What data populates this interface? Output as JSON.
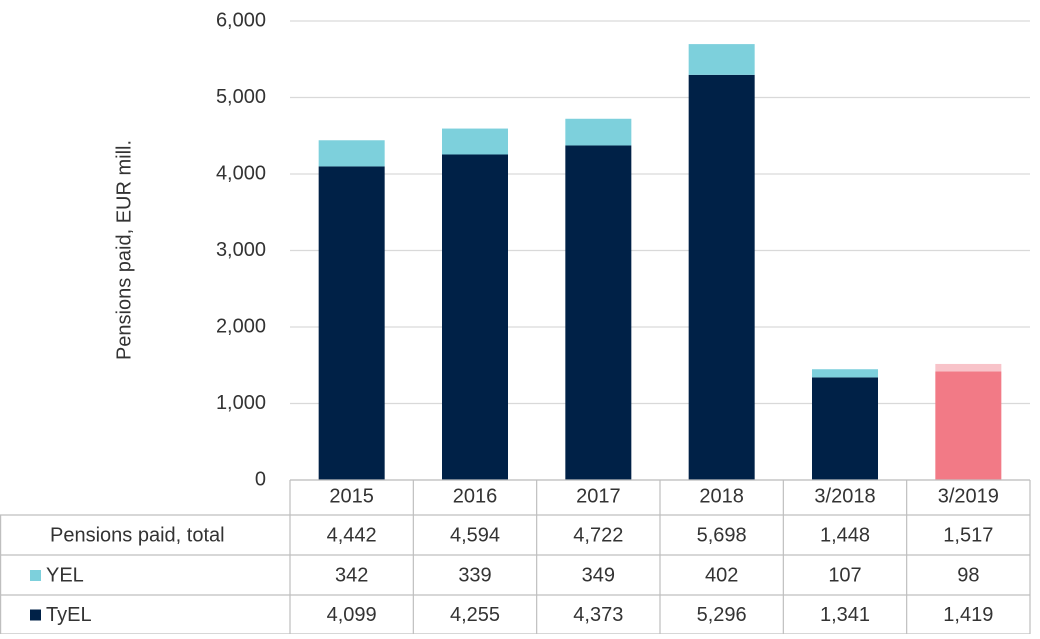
{
  "chart_data": {
    "type": "stacked_bar",
    "y_label": "Pensions paid, EUR mill.",
    "categories": [
      "2015",
      "2016",
      "2017",
      "2018",
      "3/2018",
      "3/2019"
    ],
    "series": [
      {
        "name": "TyEL",
        "color": "#002147",
        "colors": [
          "#002147",
          "#002147",
          "#002147",
          "#002147",
          "#002147",
          "#f27a86"
        ],
        "values": [
          4099,
          4255,
          4373,
          5296,
          1341,
          1419
        ],
        "value_labels": [
          "4,099",
          "4,255",
          "4,373",
          "5,296",
          "1,341",
          "1,419"
        ]
      },
      {
        "name": "YEL",
        "color": "#7dd0dc",
        "colors": [
          "#7dd0dc",
          "#7dd0dc",
          "#7dd0dc",
          "#7dd0dc",
          "#7dd0dc",
          "#f8c3c9"
        ],
        "values": [
          342,
          339,
          349,
          402,
          107,
          98
        ],
        "value_labels": [
          "342",
          "339",
          "349",
          "402",
          "107",
          "98"
        ]
      }
    ],
    "totals": {
      "name": "Pensions paid, total",
      "values": [
        4442,
        4594,
        4722,
        5698,
        1448,
        1517
      ],
      "value_labels": [
        "4,442",
        "4,594",
        "4,722",
        "5,698",
        "1,448",
        "1,517"
      ]
    },
    "ylim": [
      0,
      6000
    ],
    "yticks": [
      0,
      {
        "value": 1000,
        "label": "1,000"
      },
      {
        "value": 2000,
        "label": "2,000"
      },
      {
        "value": 3000,
        "label": "3,000"
      },
      {
        "value": 4000,
        "label": "4,000"
      },
      {
        "value": 5000,
        "label": "5,000"
      },
      {
        "value": 6000,
        "label": "6,000"
      }
    ],
    "grid": true
  }
}
